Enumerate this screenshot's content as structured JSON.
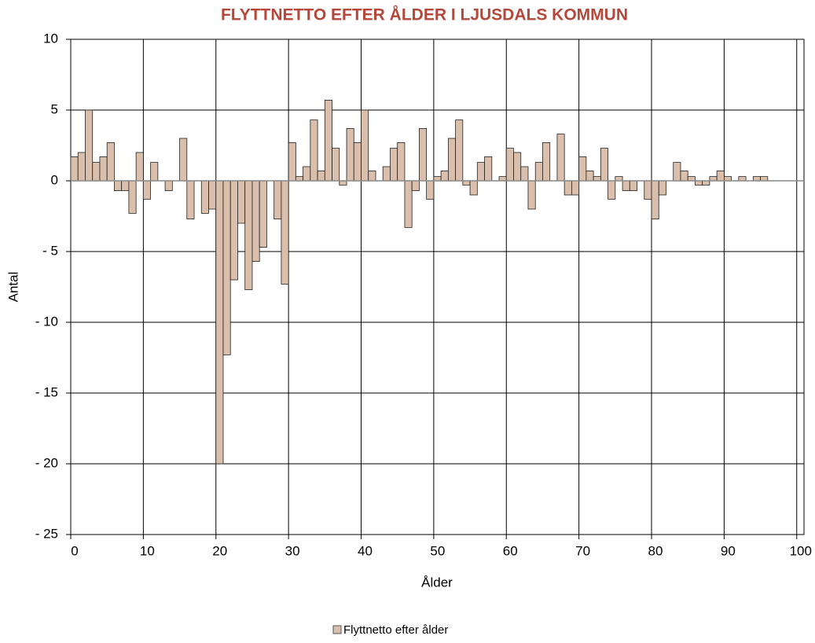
{
  "chart_data": {
    "type": "bar",
    "title": "FLYTTNETTO EFTER ÅLDER I LJUSDALS KOMMUN",
    "x_label": "Ålder",
    "y_label": "Antal",
    "x": [
      0,
      1,
      2,
      3,
      4,
      5,
      6,
      7,
      8,
      9,
      10,
      11,
      12,
      13,
      14,
      15,
      16,
      17,
      18,
      19,
      20,
      21,
      22,
      23,
      24,
      25,
      26,
      27,
      28,
      29,
      30,
      31,
      32,
      33,
      34,
      35,
      36,
      37,
      38,
      39,
      40,
      41,
      42,
      43,
      44,
      45,
      46,
      47,
      48,
      49,
      50,
      51,
      52,
      53,
      54,
      55,
      56,
      57,
      58,
      59,
      60,
      61,
      62,
      63,
      64,
      65,
      66,
      67,
      68,
      69,
      70,
      71,
      72,
      73,
      74,
      75,
      76,
      77,
      78,
      79,
      80,
      81,
      82,
      83,
      84,
      85,
      86,
      87,
      88,
      89,
      90,
      91,
      92,
      93,
      94,
      95
    ],
    "series": [
      {
        "name": "Flyttnetto efter ålder",
        "color": "#d9bfac",
        "values": [
          1.7,
          2,
          5,
          1.3,
          1.7,
          2.7,
          -0.7,
          -0.7,
          -2.3,
          2,
          -1.3,
          1.3,
          0,
          -0.7,
          0,
          3,
          -2.7,
          0,
          -2.3,
          -2,
          -20,
          -12.3,
          -7,
          -3,
          -7.7,
          -5.7,
          -4.7,
          0,
          -2.7,
          -7.3,
          2.7,
          0.3,
          1,
          4.3,
          0.7,
          5.7,
          2.3,
          -0.3,
          3.7,
          2.7,
          5,
          0.7,
          0,
          1,
          2.3,
          2.7,
          -3.3,
          -0.7,
          3.7,
          -1.3,
          0.3,
          0.7,
          3,
          4.3,
          -0.3,
          -1,
          1.3,
          1.7,
          0,
          0.3,
          2.3,
          2,
          1,
          -2,
          1.3,
          2.7,
          0,
          3.3,
          -1,
          -1,
          1.7,
          0.7,
          0.3,
          2.3,
          -1.3,
          0.3,
          -0.7,
          -0.7,
          0,
          -1.3,
          -2.7,
          -1,
          0,
          1.3,
          0.7,
          0.3,
          -0.3,
          -0.3,
          0.3,
          0.7,
          0.3,
          0,
          0.3,
          0,
          0.3,
          0.3
        ]
      }
    ],
    "xlim": [
      0,
      101
    ],
    "xticks": [
      0,
      10,
      20,
      30,
      40,
      50,
      60,
      70,
      80,
      90,
      100
    ],
    "ylim": [
      -25,
      10
    ],
    "yticks": [
      10,
      5,
      0,
      {
        "value": -5,
        "label": "- 5"
      },
      {
        "value": -10,
        "label": "- 10"
      },
      {
        "value": -15,
        "label": "- 15"
      },
      {
        "value": -20,
        "label": "- 20"
      },
      {
        "value": -25,
        "label": "- 25"
      }
    ],
    "grid": true,
    "legend": "bottom"
  }
}
